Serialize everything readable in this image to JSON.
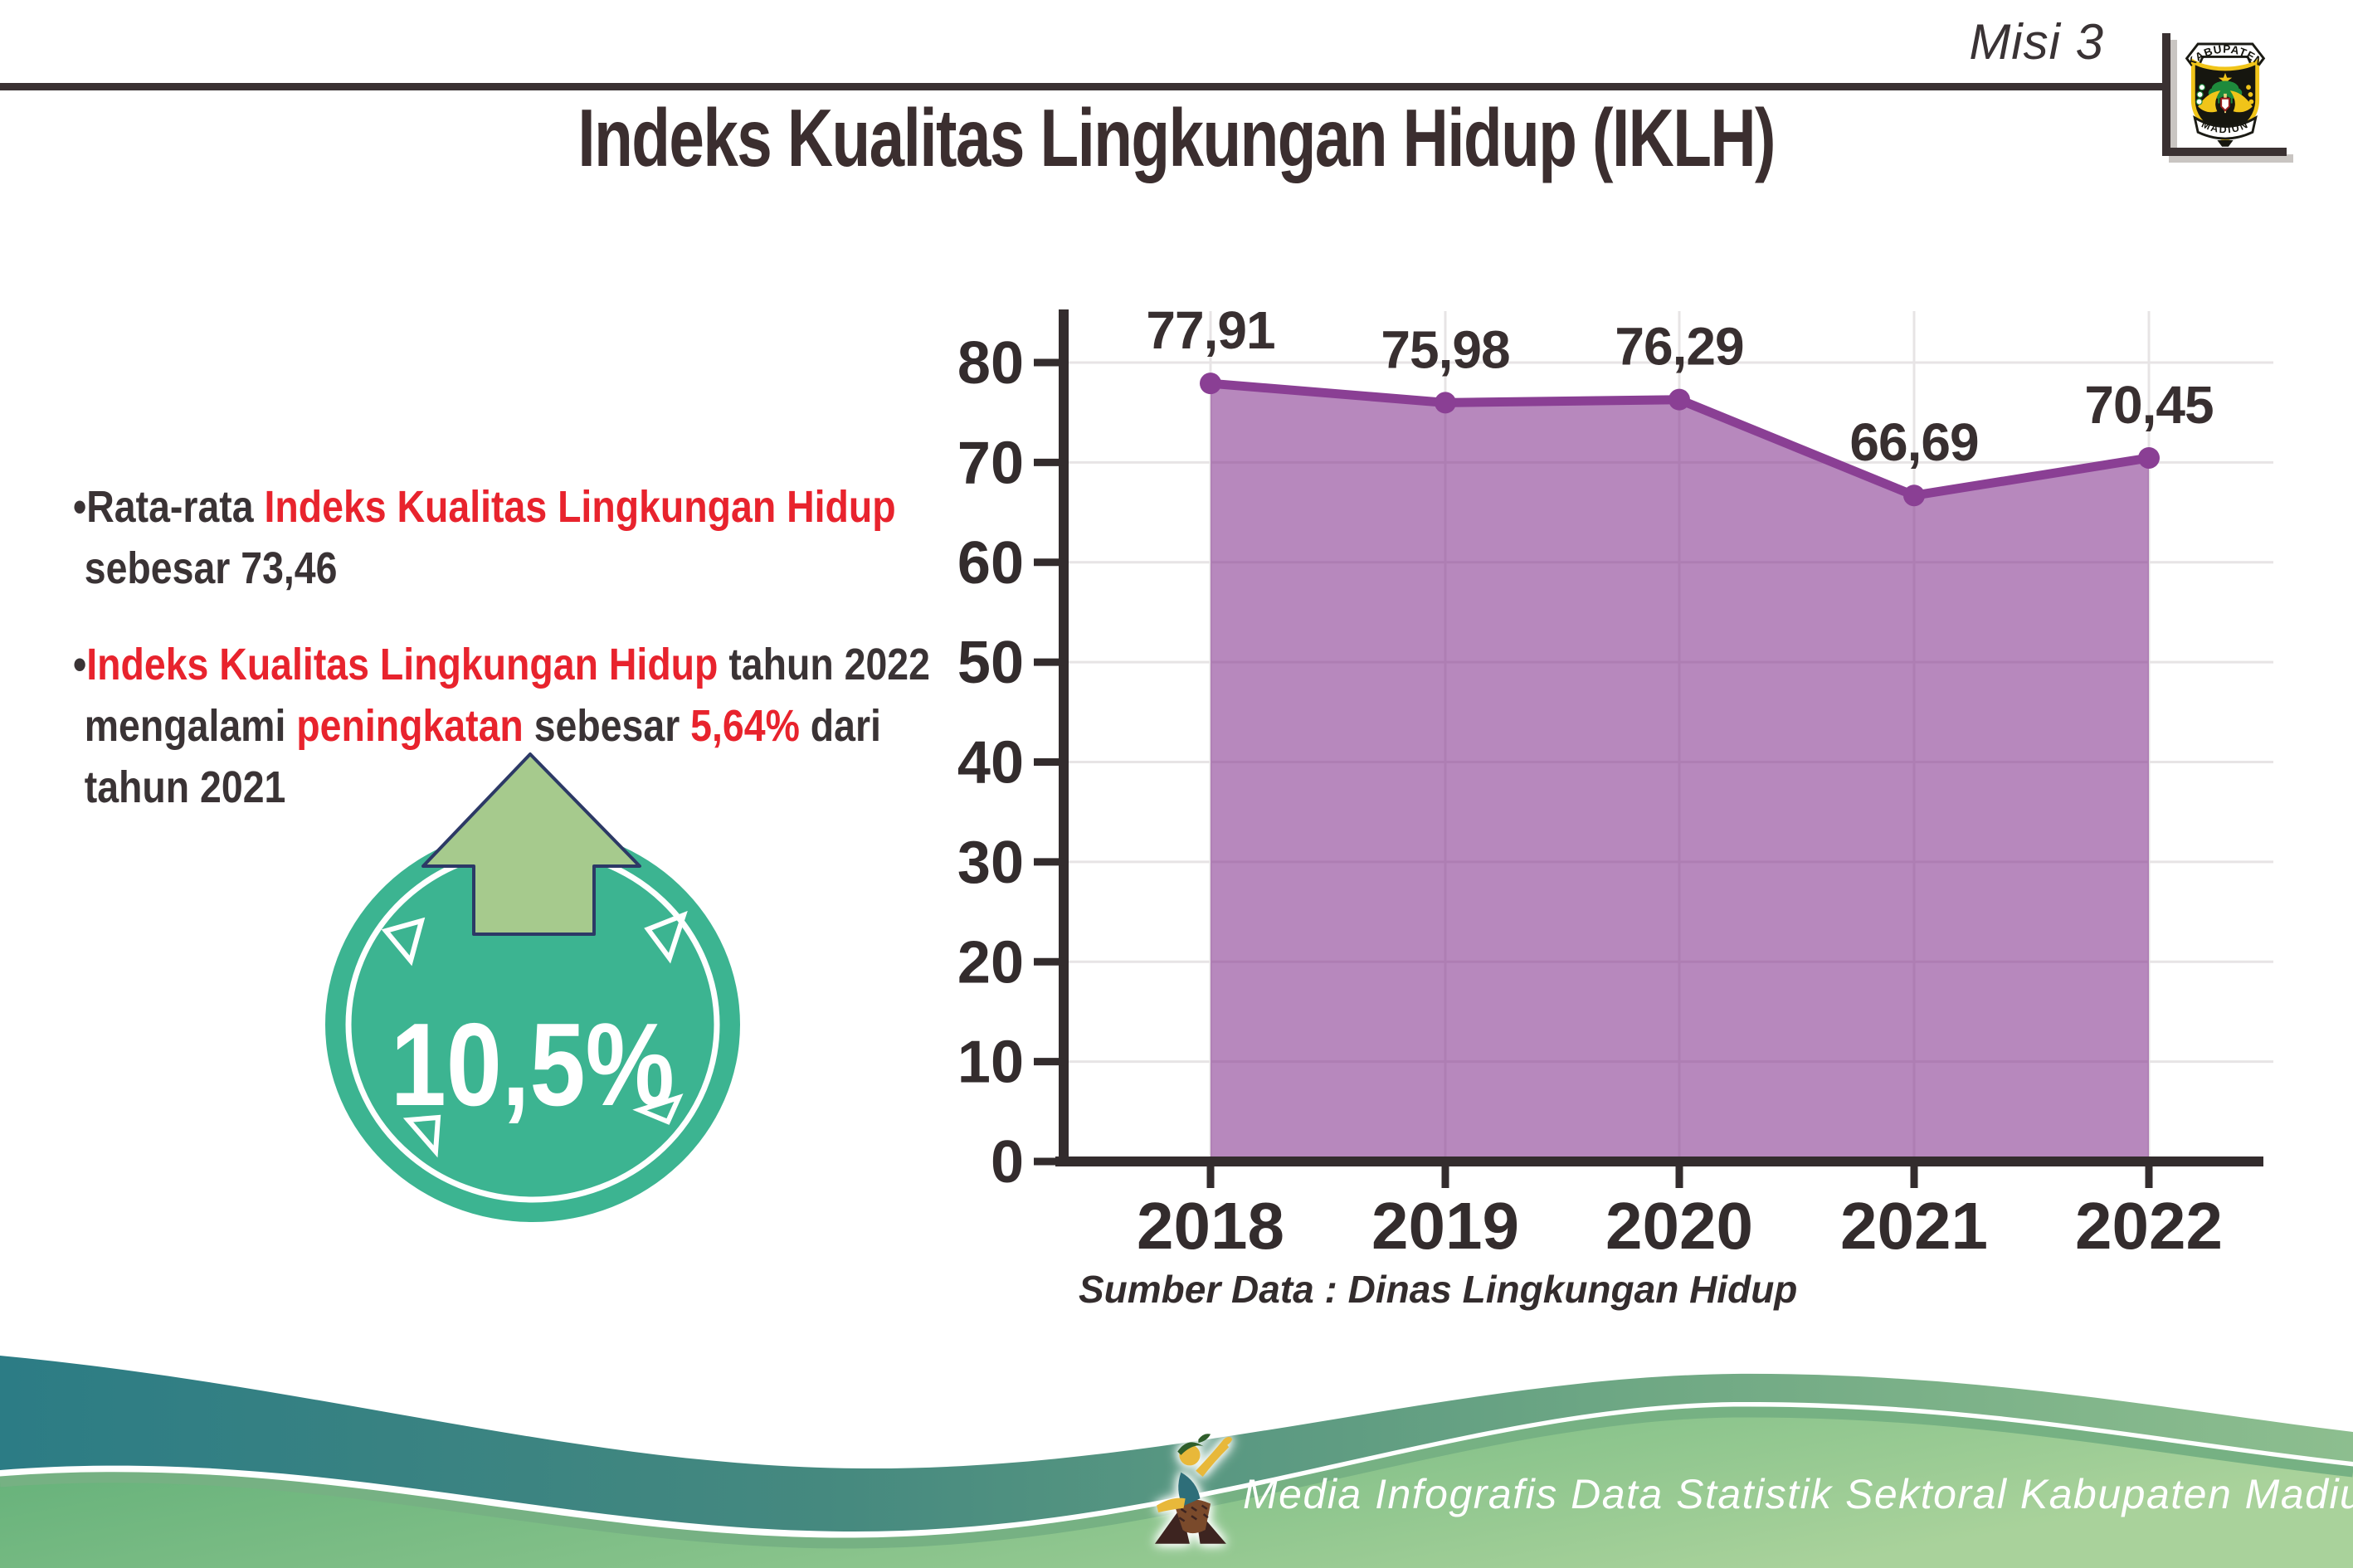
{
  "colors": {
    "red": "#e8232d",
    "dark": "#3a3335",
    "teal_badge": "#3cb491",
    "arrow_green": "#a6ca8d",
    "arrow_outline": "#2c3966",
    "axis": "#332c2d",
    "grid": "#e7e4e5"
  },
  "header": {
    "mission_label": "Misi 3",
    "logo_top_text": "KABUPATEN",
    "logo_bottom_text": "MADIUN"
  },
  "title": "Indeks Kualitas Lingkungan Hidup (IKLH)",
  "bullets": {
    "para1": {
      "lines": [
        [
          {
            "t": "•Rata-rata ",
            "c": "dark"
          },
          {
            "t": "Indeks Kualitas Lingkungan Hidup",
            "c": "red"
          }
        ],
        [
          {
            "t": "sebesar 73,46",
            "c": "dark"
          }
        ]
      ]
    },
    "para2": {
      "lines": [
        [
          {
            "t": "•",
            "c": "dark"
          },
          {
            "t": "Indeks Kualitas Lingkungan Hidup",
            "c": "red"
          },
          {
            "t": " tahun 2022",
            "c": "dark"
          }
        ],
        [
          {
            "t": "mengalami ",
            "c": "dark"
          },
          {
            "t": "peningkatan",
            "c": "red"
          },
          {
            "t": " sebesar ",
            "c": "dark"
          },
          {
            "t": "5,64%",
            "c": "red"
          },
          {
            "t": " dari",
            "c": "dark"
          }
        ],
        [
          {
            "t": "tahun 2021",
            "c": "dark"
          }
        ]
      ]
    }
  },
  "badge": {
    "value_label": "10,5%"
  },
  "chart_data": {
    "type": "area",
    "title": "",
    "categories": [
      "2018",
      "2019",
      "2020",
      "2021",
      "2022"
    ],
    "values": [
      77.91,
      75.98,
      76.29,
      66.69,
      70.45
    ],
    "value_labels": [
      "77,91",
      "75,98",
      "76,29",
      "66,69",
      "70,45"
    ],
    "xlabel": "",
    "ylabel": "",
    "ylim": [
      0,
      85
    ],
    "yticks": [
      0,
      10,
      20,
      30,
      40,
      50,
      60,
      70,
      80
    ],
    "grid": true,
    "legend": false,
    "line_color": "#8a3f94",
    "fill_color": "rgba(138,63,148,0.62)",
    "source_note": "Sumber Data : Dinas Lingkungan Hidup"
  },
  "footer": {
    "credit_text": "Media Infografis Data Statistik Sektoral Kabupaten Madiun |"
  }
}
